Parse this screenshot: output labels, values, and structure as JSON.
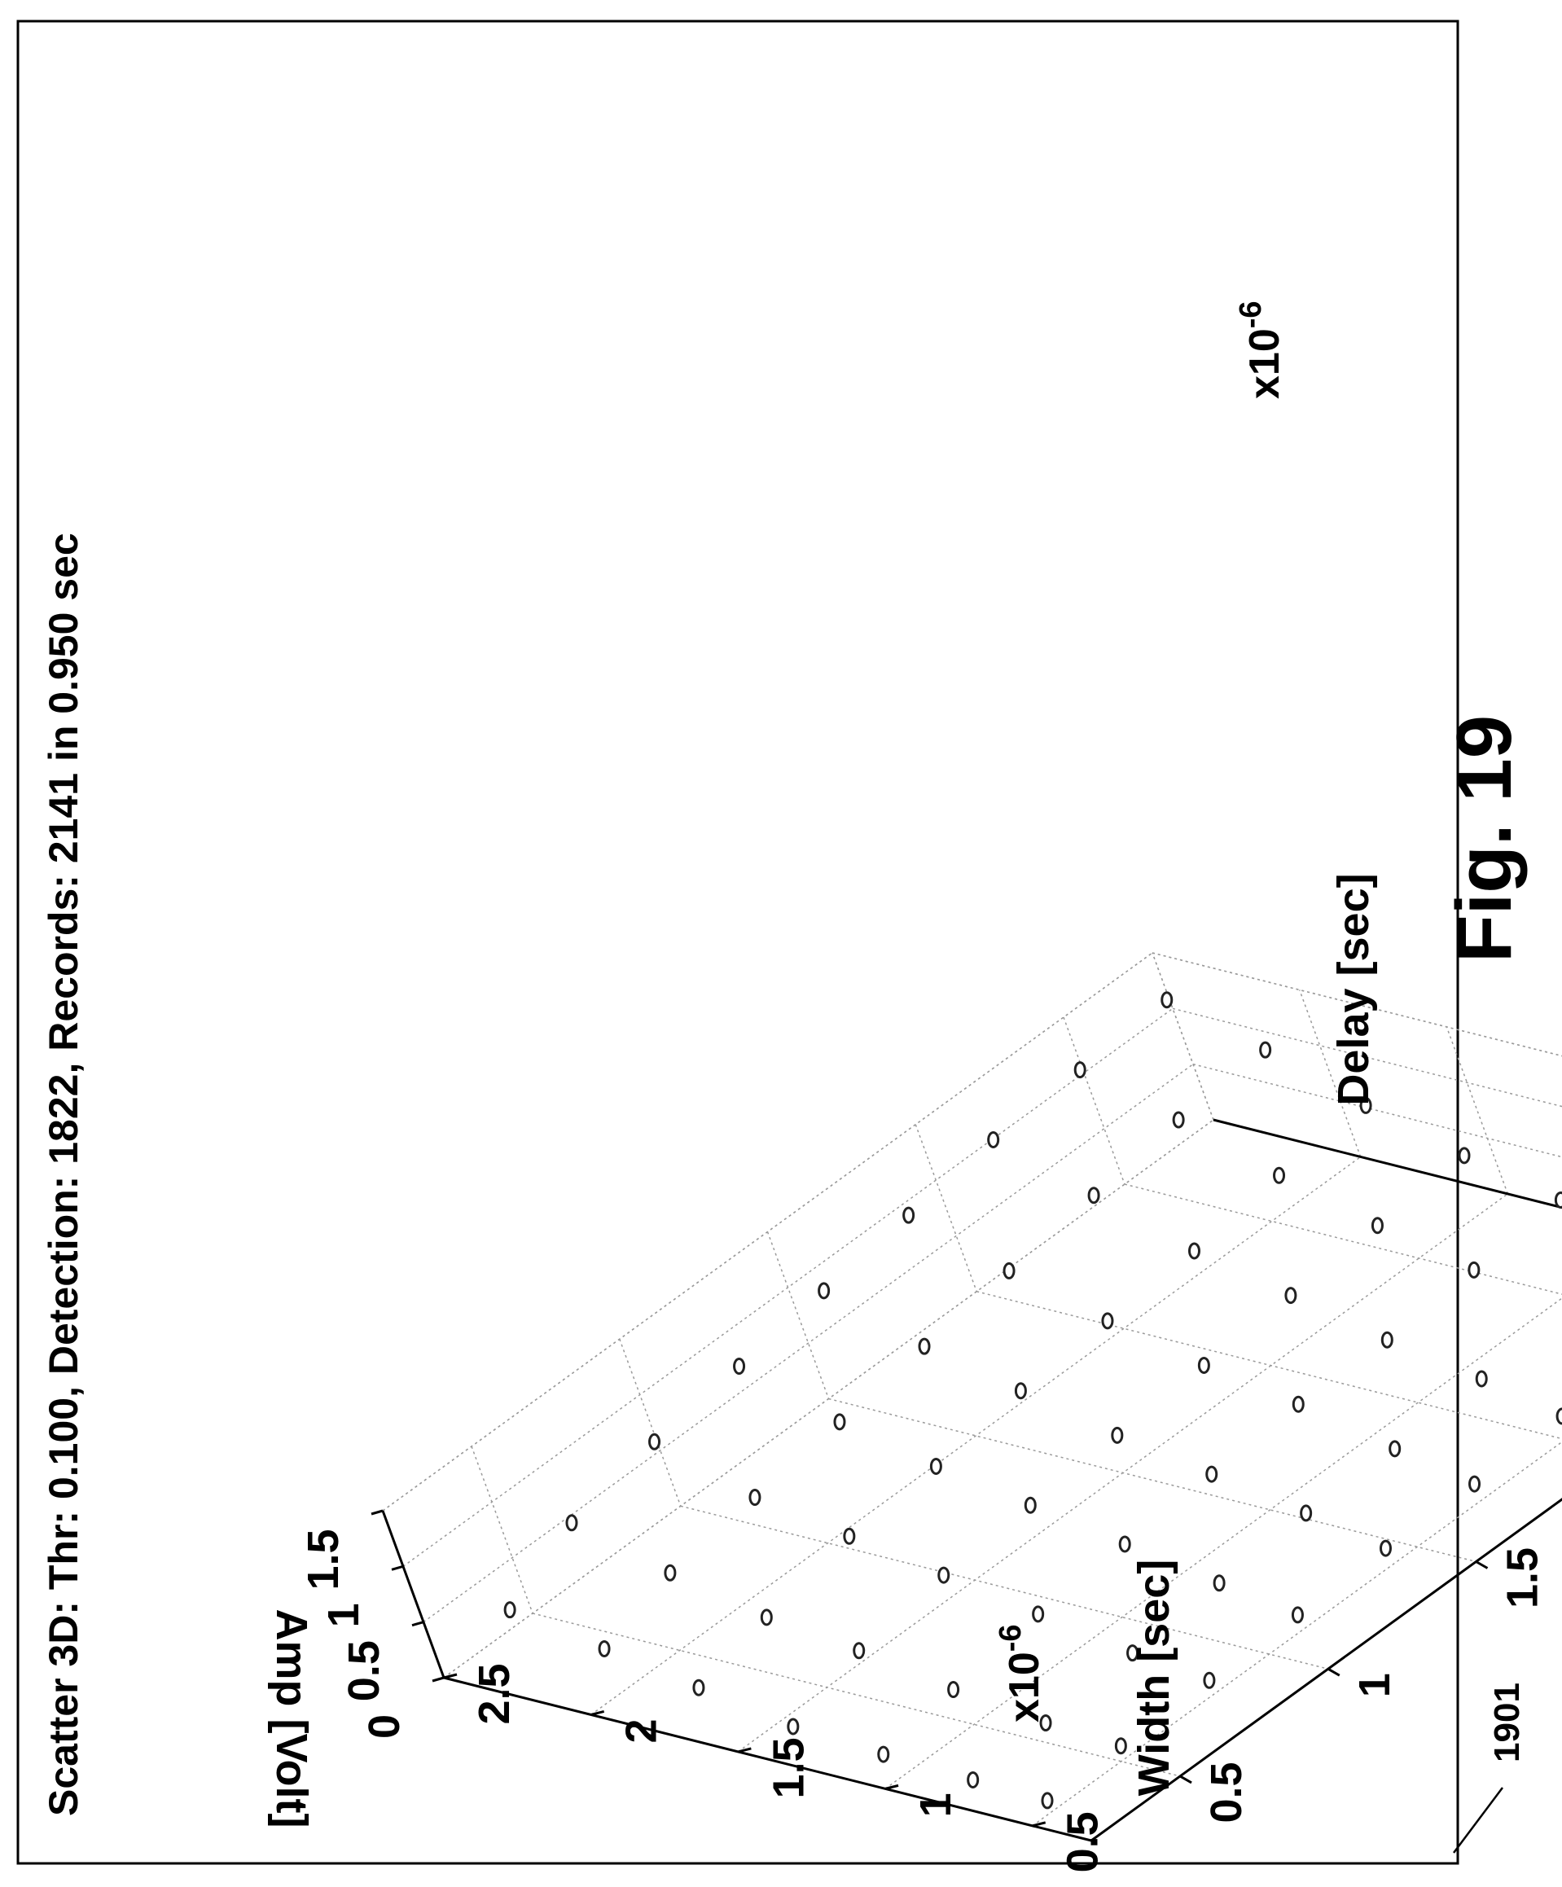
{
  "figure": {
    "title": "Scatter 3D:  Thr: 0.100,  Detection: 1822,  Records: 2141  in 0.950 sec",
    "figure_label": "Fig. 19",
    "reference_numeral": "1901"
  },
  "chart_data": {
    "type": "scatter",
    "title": "Scatter 3D:  Thr: 0.100,  Detection: 1822,  Records: 2141  in 0.950 sec",
    "xlabel": "Delay  [sec]",
    "ylabel": "Width  [sec]",
    "zlabel": "Amp  [Volt]",
    "x_exponent": "x10-6",
    "y_exponent": "x10-6",
    "x_exponent_base": "x10",
    "x_exponent_power": "-6",
    "y_exponent_base": "x10",
    "y_exponent_power": "-6",
    "xlim": [
      0.2,
      2.8
    ],
    "ylim": [
      0.3,
      2.5
    ],
    "zlim": [
      0,
      1.5
    ],
    "x_ticks": [
      "0.5",
      "1",
      "1.5",
      "2",
      "2.5"
    ],
    "y_ticks": [
      "0.5",
      "1",
      "1.5",
      "2",
      "2.5"
    ],
    "z_ticks": [
      "0",
      "0.5",
      "1",
      "1.5"
    ],
    "x_tick_values": [
      0.5,
      1.0,
      1.5,
      2.0,
      2.5
    ],
    "y_tick_values": [
      0.5,
      1.0,
      1.5,
      2.0,
      2.5
    ],
    "z_tick_values": [
      0,
      0.5,
      1.0,
      1.5
    ],
    "grid": true,
    "marker": "circle",
    "series": [
      {
        "points": [
          [
            0.3,
            2.3,
            0.55
          ],
          [
            0.3,
            2.0,
            0.4
          ],
          [
            0.3,
            1.7,
            0.25
          ],
          [
            0.3,
            1.4,
            0.1
          ],
          [
            0.3,
            1.1,
            0.05
          ],
          [
            0.3,
            0.8,
            0.02
          ],
          [
            0.3,
            0.55,
            0.0
          ],
          [
            0.55,
            2.3,
            0.85
          ],
          [
            0.55,
            2.0,
            0.6
          ],
          [
            0.55,
            1.7,
            0.4
          ],
          [
            0.55,
            1.4,
            0.3
          ],
          [
            0.55,
            1.1,
            0.15
          ],
          [
            0.55,
            0.8,
            0.05
          ],
          [
            0.55,
            0.55,
            0.01
          ],
          [
            0.85,
            2.3,
            1.0
          ],
          [
            0.85,
            2.0,
            0.7
          ],
          [
            0.85,
            1.7,
            0.55
          ],
          [
            0.85,
            1.4,
            0.4
          ],
          [
            0.85,
            1.1,
            0.25
          ],
          [
            0.85,
            0.8,
            0.1
          ],
          [
            0.85,
            0.55,
            0.02
          ],
          [
            1.15,
            2.3,
            1.1
          ],
          [
            1.15,
            2.0,
            0.8
          ],
          [
            1.15,
            1.7,
            0.6
          ],
          [
            1.15,
            1.4,
            0.45
          ],
          [
            1.15,
            1.1,
            0.3
          ],
          [
            1.15,
            0.8,
            0.15
          ],
          [
            1.15,
            0.55,
            0.03
          ],
          [
            1.45,
            2.3,
            1.2
          ],
          [
            1.45,
            2.0,
            0.9
          ],
          [
            1.45,
            1.7,
            0.7
          ],
          [
            1.45,
            1.4,
            0.5
          ],
          [
            1.45,
            1.1,
            0.35
          ],
          [
            1.45,
            0.8,
            0.2
          ],
          [
            1.45,
            0.55,
            0.05
          ],
          [
            1.75,
            2.3,
            1.3
          ],
          [
            1.75,
            2.0,
            1.0
          ],
          [
            1.75,
            1.7,
            0.75
          ],
          [
            1.75,
            1.4,
            0.55
          ],
          [
            1.75,
            1.1,
            0.4
          ],
          [
            1.75,
            0.8,
            0.2
          ],
          [
            1.75,
            0.55,
            0.05
          ],
          [
            2.05,
            2.3,
            1.4
          ],
          [
            2.05,
            2.0,
            1.1
          ],
          [
            2.05,
            1.7,
            0.8
          ],
          [
            2.05,
            1.4,
            0.6
          ],
          [
            2.05,
            1.1,
            0.4
          ],
          [
            2.05,
            0.8,
            0.25
          ],
          [
            2.05,
            0.55,
            0.08
          ],
          [
            2.35,
            2.3,
            1.45
          ],
          [
            2.35,
            2.0,
            1.2
          ],
          [
            2.35,
            1.7,
            0.9
          ],
          [
            2.35,
            1.4,
            0.65
          ],
          [
            2.35,
            1.1,
            0.45
          ],
          [
            2.35,
            0.8,
            0.25
          ],
          [
            2.35,
            0.55,
            0.08
          ],
          [
            2.65,
            2.3,
            1.5
          ],
          [
            2.65,
            2.0,
            1.25
          ],
          [
            2.65,
            1.7,
            0.95
          ],
          [
            2.65,
            1.4,
            0.7
          ],
          [
            2.65,
            1.1,
            0.5
          ],
          [
            2.65,
            0.8,
            0.3
          ],
          [
            2.65,
            0.55,
            0.1
          ]
        ]
      }
    ]
  }
}
